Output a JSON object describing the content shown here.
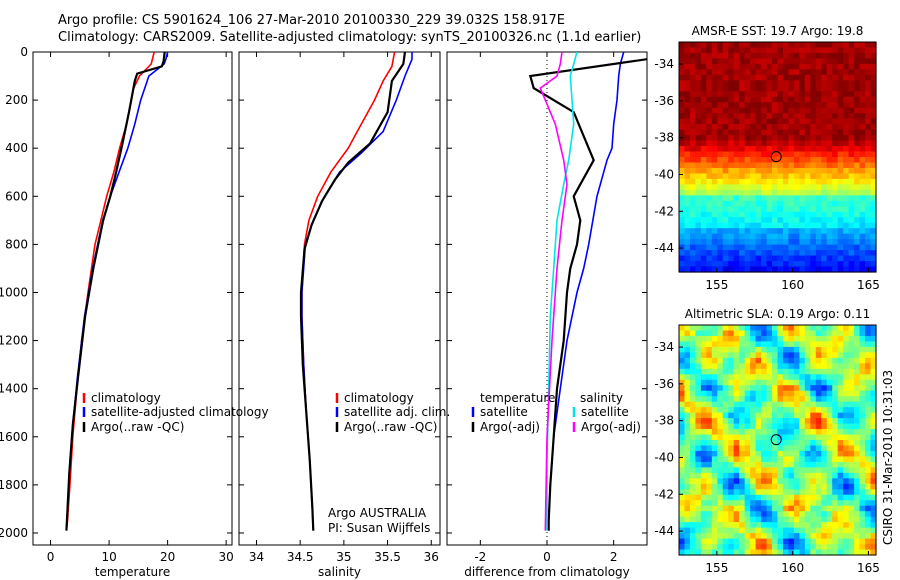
{
  "header": {
    "line1": "Argo profile: CS 5901624_106 27-Mar-2010 20100330_229 39.032S 158.917E",
    "line2": "Climatology: CARS2009. Satellite-adjusted climatology: synTS_20100326.nc (1.1d earlier)"
  },
  "credits": {
    "org": "Argo AUSTRALIA",
    "pi": "PI: Susan Wijffels",
    "stamp": "CSIRO 31-Mar-2010 10:31:03"
  },
  "colors": {
    "climatology": "#ff0000",
    "satellite": "#0000ff",
    "argo": "#000000",
    "salinity_satellite": "#00e5e5",
    "salinity_argo": "#ff00ff"
  },
  "chart_data": [
    {
      "type": "line",
      "xlabel": "temperature",
      "xlim": [
        -3,
        31
      ],
      "ylim": [
        2050,
        0
      ],
      "xticks": [
        0,
        10,
        20,
        30
      ],
      "yticks": [
        0,
        200,
        400,
        600,
        800,
        1000,
        1200,
        1400,
        1600,
        1800,
        2000
      ],
      "legend": [
        "climatology",
        "satellite-adjusted climatology",
        "Argo(..raw -QC)"
      ],
      "series": [
        {
          "name": "climatology",
          "color": "#ff0000",
          "x": [
            17.7,
            17.2,
            15.2,
            14.2,
            13.0,
            11.8,
            10.8,
            9.6,
            8.6,
            7.6,
            6.4,
            5.3,
            4.5,
            3.8,
            3.3,
            2.9,
            2.7
          ],
          "y": [
            0,
            50,
            100,
            150,
            300,
            400,
            500,
            600,
            700,
            800,
            1000,
            1200,
            1400,
            1600,
            1800,
            1950,
            1990
          ]
        },
        {
          "name": "satellite-adjusted climatology",
          "color": "#0000ff",
          "x": [
            20.0,
            19.7,
            19.4,
            16.8,
            15.4,
            14.4,
            13.2,
            11.7,
            10.2,
            8.9,
            7.2,
            5.8,
            4.6,
            3.8,
            3.2,
            2.8,
            2.7
          ],
          "y": [
            0,
            30,
            50,
            100,
            200,
            300,
            400,
            500,
            600,
            700,
            900,
            1100,
            1350,
            1550,
            1750,
            1950,
            1990
          ]
        },
        {
          "name": "Argo(..raw -QC)",
          "color": "#000000",
          "x": [
            19.5,
            19.3,
            19.0,
            14.8,
            14.4,
            13.4,
            12.3,
            11.2,
            10.2,
            9.0,
            7.3,
            5.9,
            4.7,
            3.8,
            3.2,
            2.8,
            2.7
          ],
          "y": [
            0,
            40,
            60,
            90,
            120,
            250,
            380,
            500,
            600,
            700,
            900,
            1100,
            1350,
            1550,
            1750,
            1950,
            1990
          ]
        }
      ]
    },
    {
      "type": "line",
      "xlabel": "salinity",
      "xlim": [
        33.8,
        36.1
      ],
      "ylim": [
        2050,
        0
      ],
      "xticks": [
        34,
        34.5,
        35,
        35.5,
        36
      ],
      "legend": [
        "climatology",
        "satellite adj. clim.",
        "Argo(..raw -QC)"
      ],
      "series": [
        {
          "name": "climatology",
          "color": "#ff0000",
          "x": [
            35.58,
            35.55,
            35.45,
            35.35,
            35.2,
            35.05,
            34.85,
            34.7,
            34.6,
            34.55,
            34.52,
            34.52,
            34.54,
            34.57,
            34.61,
            34.64,
            34.65
          ],
          "y": [
            0,
            60,
            120,
            200,
            300,
            400,
            500,
            600,
            700,
            800,
            1000,
            1100,
            1300,
            1500,
            1700,
            1900,
            1990
          ]
        },
        {
          "name": "satellite adj. clim.",
          "color": "#0000ff",
          "x": [
            35.78,
            35.78,
            35.7,
            35.6,
            35.45,
            35.2,
            34.95,
            34.78,
            34.65,
            34.56,
            34.52,
            34.52,
            34.54,
            34.57,
            34.61,
            34.64,
            34.65
          ],
          "y": [
            0,
            30,
            100,
            200,
            330,
            420,
            500,
            600,
            700,
            800,
            1000,
            1100,
            1300,
            1500,
            1700,
            1900,
            1990
          ]
        },
        {
          "name": "Argo(..raw -QC)",
          "color": "#000000",
          "x": [
            35.7,
            35.68,
            35.55,
            35.5,
            35.3,
            35.05,
            34.9,
            34.75,
            34.63,
            34.55,
            34.51,
            34.51,
            34.53,
            34.57,
            34.61,
            34.64,
            34.65
          ],
          "y": [
            0,
            50,
            120,
            250,
            380,
            460,
            530,
            620,
            720,
            820,
            1000,
            1100,
            1300,
            1500,
            1700,
            1900,
            1990
          ]
        }
      ]
    },
    {
      "type": "line",
      "xlabel": "difference from climatology",
      "xlim": [
        -3,
        3
      ],
      "ylim": [
        2050,
        0
      ],
      "xticks": [
        -2,
        0,
        2
      ],
      "legend": [
        "temperature",
        "satellite",
        "Argo(-adj)",
        "salinity",
        "satellite",
        "Argo(-adj)"
      ],
      "series": [
        {
          "name": "satellite",
          "group": "temperature",
          "color": "#0000ff",
          "x": [
            2.3,
            2.2,
            2.15,
            2.1,
            2.0,
            1.95,
            1.8,
            1.5,
            1.25,
            1.1,
            0.9,
            0.6,
            0.4,
            0.2,
            0.1,
            0.05,
            0.05
          ],
          "y": [
            0,
            50,
            100,
            200,
            300,
            400,
            450,
            600,
            800,
            900,
            1000,
            1200,
            1400,
            1600,
            1800,
            1950,
            1990
          ]
        },
        {
          "name": "Argo(-adj)",
          "group": "temperature",
          "color": "#000000",
          "x": [
            3.0,
            -0.5,
            -0.4,
            0.8,
            1.1,
            1.4,
            0.8,
            1.0,
            0.9,
            0.7,
            0.6,
            0.5,
            0.3,
            0.2,
            0.1,
            0.05,
            0.05
          ],
          "y": [
            30,
            100,
            150,
            250,
            350,
            450,
            600,
            700,
            800,
            900,
            1000,
            1200,
            1400,
            1600,
            1800,
            1950,
            1990
          ]
        },
        {
          "name": "satellite",
          "group": "salinity",
          "color": "#00e5e5",
          "x": [
            0.9,
            0.8,
            0.7,
            0.8,
            0.65,
            0.5,
            0.3,
            0.2,
            0.1,
            0.05,
            0.0,
            0.0
          ],
          "y": [
            0,
            50,
            100,
            300,
            450,
            550,
            700,
            900,
            1100,
            1400,
            1700,
            1990
          ]
        },
        {
          "name": "Argo(-adj)",
          "group": "salinity",
          "color": "#ff00ff",
          "x": [
            0.45,
            0.4,
            0.3,
            -0.2,
            -0.05,
            0.25,
            0.5,
            0.6,
            0.45,
            0.3,
            0.15,
            0.0,
            -0.05
          ],
          "y": [
            0,
            50,
            100,
            150,
            200,
            300,
            450,
            550,
            700,
            900,
            1200,
            1600,
            1990
          ]
        }
      ]
    },
    {
      "type": "heatmap",
      "title": "AMSR-E SST: 19.7 Argo: 19.8",
      "xlim": [
        152.5,
        165.5
      ],
      "ylim": [
        -45.3,
        -32.8
      ],
      "xticks": [
        155,
        160,
        165
      ],
      "yticks": [
        -34,
        -36,
        -38,
        -40,
        -42,
        -44
      ],
      "marker": {
        "x": 158.917,
        "y": -39.032
      }
    },
    {
      "type": "heatmap",
      "title": "Altimetric SLA: 0.19 Argo: 0.11",
      "xlim": [
        152.5,
        165.5
      ],
      "ylim": [
        -45.3,
        -32.8
      ],
      "xticks": [
        155,
        160,
        165
      ],
      "yticks": [
        -34,
        -36,
        -38,
        -40,
        -42,
        -44
      ],
      "marker": {
        "x": 158.917,
        "y": -39.032
      }
    }
  ]
}
